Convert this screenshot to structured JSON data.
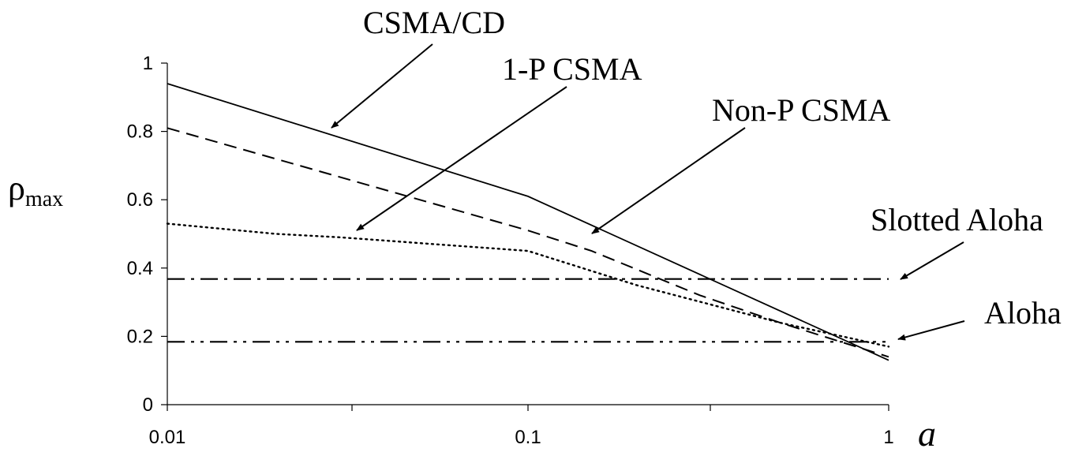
{
  "chart_data": {
    "type": "line",
    "title": "",
    "xlabel": "a",
    "ylabel": "ρ",
    "ylabel_subscript": "max",
    "x_scale": "log",
    "xlim": [
      0.01,
      1
    ],
    "ylim": [
      0,
      1
    ],
    "x_ticks": [
      "0.01",
      "0.1",
      "1"
    ],
    "y_ticks": [
      "0",
      "0.2",
      "0.4",
      "0.6",
      "0.8",
      "1"
    ],
    "grid": false,
    "legend": "none",
    "series": [
      {
        "name": "CSMA/CD",
        "style": "solid",
        "x": [
          0.01,
          0.1,
          1
        ],
        "y": [
          0.94,
          0.61,
          0.13
        ]
      },
      {
        "name": "1-P CSMA",
        "style": "dotted",
        "x": [
          0.01,
          0.02,
          0.03,
          0.1,
          0.2,
          0.5,
          1
        ],
        "y": [
          0.53,
          0.5,
          0.49,
          0.45,
          0.35,
          0.24,
          0.17
        ]
      },
      {
        "name": "Non-P CSMA",
        "style": "dashed",
        "x": [
          0.01,
          0.1,
          0.15,
          0.3,
          0.5,
          1
        ],
        "y": [
          0.81,
          0.51,
          0.45,
          0.32,
          0.24,
          0.14
        ]
      },
      {
        "name": "Slotted Aloha",
        "style": "dash-dot",
        "x": [
          0.01,
          1
        ],
        "y": [
          0.368,
          0.368
        ]
      },
      {
        "name": "Aloha",
        "style": "dash-dot-dot",
        "x": [
          0.01,
          1
        ],
        "y": [
          0.184,
          0.184
        ]
      }
    ]
  }
}
